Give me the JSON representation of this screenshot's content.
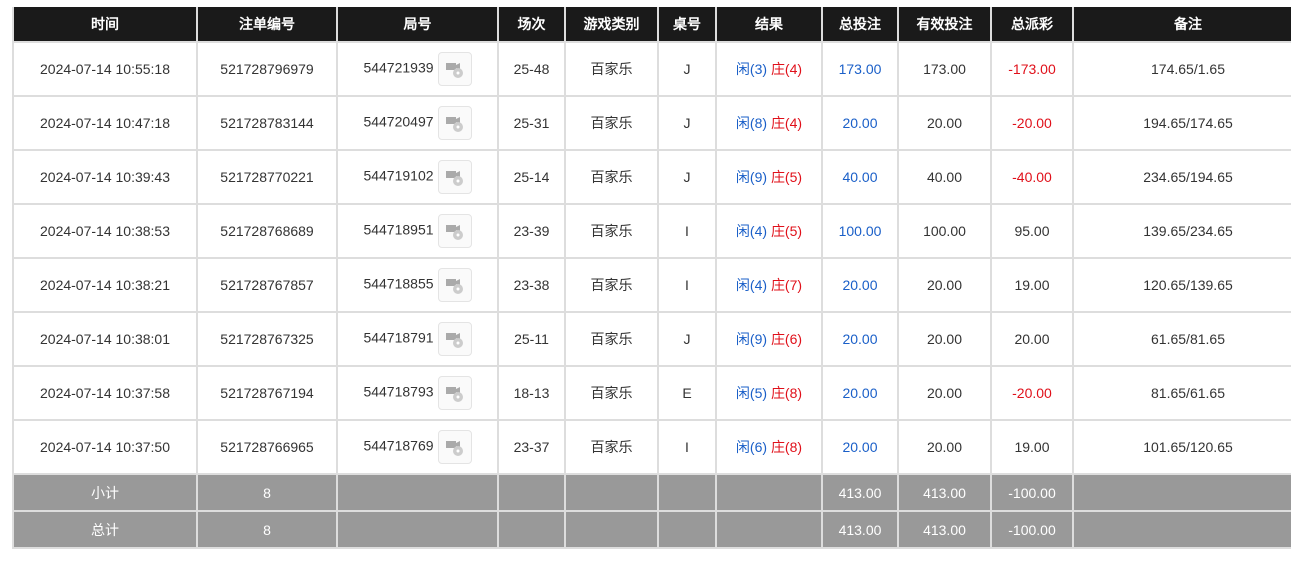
{
  "headers": [
    "时间",
    "注单编号",
    "局号",
    "场次",
    "游戏类别",
    "桌号",
    "结果",
    "总投注",
    "有效投注",
    "总派彩",
    "备注"
  ],
  "rows": [
    {
      "time": "2024-07-14 10:55:18",
      "bet_id": "521728796979",
      "round": "544721939",
      "session": "25-48",
      "game": "百家乐",
      "table": "J",
      "player": "闲(3)",
      "banker": "庄(4)",
      "total": "173.00",
      "valid": "173.00",
      "payout": "-173.00",
      "note": "174.65/1.65"
    },
    {
      "time": "2024-07-14 10:47:18",
      "bet_id": "521728783144",
      "round": "544720497",
      "session": "25-31",
      "game": "百家乐",
      "table": "J",
      "player": "闲(8)",
      "banker": "庄(4)",
      "total": "20.00",
      "valid": "20.00",
      "payout": "-20.00",
      "note": "194.65/174.65"
    },
    {
      "time": "2024-07-14 10:39:43",
      "bet_id": "521728770221",
      "round": "544719102",
      "session": "25-14",
      "game": "百家乐",
      "table": "J",
      "player": "闲(9)",
      "banker": "庄(5)",
      "total": "40.00",
      "valid": "40.00",
      "payout": "-40.00",
      "note": "234.65/194.65"
    },
    {
      "time": "2024-07-14 10:38:53",
      "bet_id": "521728768689",
      "round": "544718951",
      "session": "23-39",
      "game": "百家乐",
      "table": "I",
      "player": "闲(4)",
      "banker": "庄(5)",
      "total": "100.00",
      "valid": "100.00",
      "payout": "95.00",
      "note": "139.65/234.65"
    },
    {
      "time": "2024-07-14 10:38:21",
      "bet_id": "521728767857",
      "round": "544718855",
      "session": "23-38",
      "game": "百家乐",
      "table": "I",
      "player": "闲(4)",
      "banker": "庄(7)",
      "total": "20.00",
      "valid": "20.00",
      "payout": "19.00",
      "note": "120.65/139.65"
    },
    {
      "time": "2024-07-14 10:38:01",
      "bet_id": "521728767325",
      "round": "544718791",
      "session": "25-11",
      "game": "百家乐",
      "table": "J",
      "player": "闲(9)",
      "banker": "庄(6)",
      "total": "20.00",
      "valid": "20.00",
      "payout": "20.00",
      "note": "61.65/81.65"
    },
    {
      "time": "2024-07-14 10:37:58",
      "bet_id": "521728767194",
      "round": "544718793",
      "session": "18-13",
      "game": "百家乐",
      "table": "E",
      "player": "闲(5)",
      "banker": "庄(8)",
      "total": "20.00",
      "valid": "20.00",
      "payout": "-20.00",
      "note": "81.65/61.65"
    },
    {
      "time": "2024-07-14 10:37:50",
      "bet_id": "521728766965",
      "round": "544718769",
      "session": "23-37",
      "game": "百家乐",
      "table": "I",
      "player": "闲(6)",
      "banker": "庄(8)",
      "total": "20.00",
      "valid": "20.00",
      "payout": "19.00",
      "note": "101.65/120.65"
    }
  ],
  "summary": [
    {
      "label": "小计",
      "count": "8",
      "total": "413.00",
      "valid": "413.00",
      "payout": "-100.00"
    },
    {
      "label": "总计",
      "count": "8",
      "total": "413.00",
      "valid": "413.00",
      "payout": "-100.00"
    }
  ],
  "icons": {
    "replay": "video-replay-icon"
  },
  "colors": {
    "player": "#1a5fc8",
    "banker": "#e0101a",
    "negative": "#e0101a",
    "header_bg": "#1a1a1a",
    "summary_bg": "#999999"
  }
}
